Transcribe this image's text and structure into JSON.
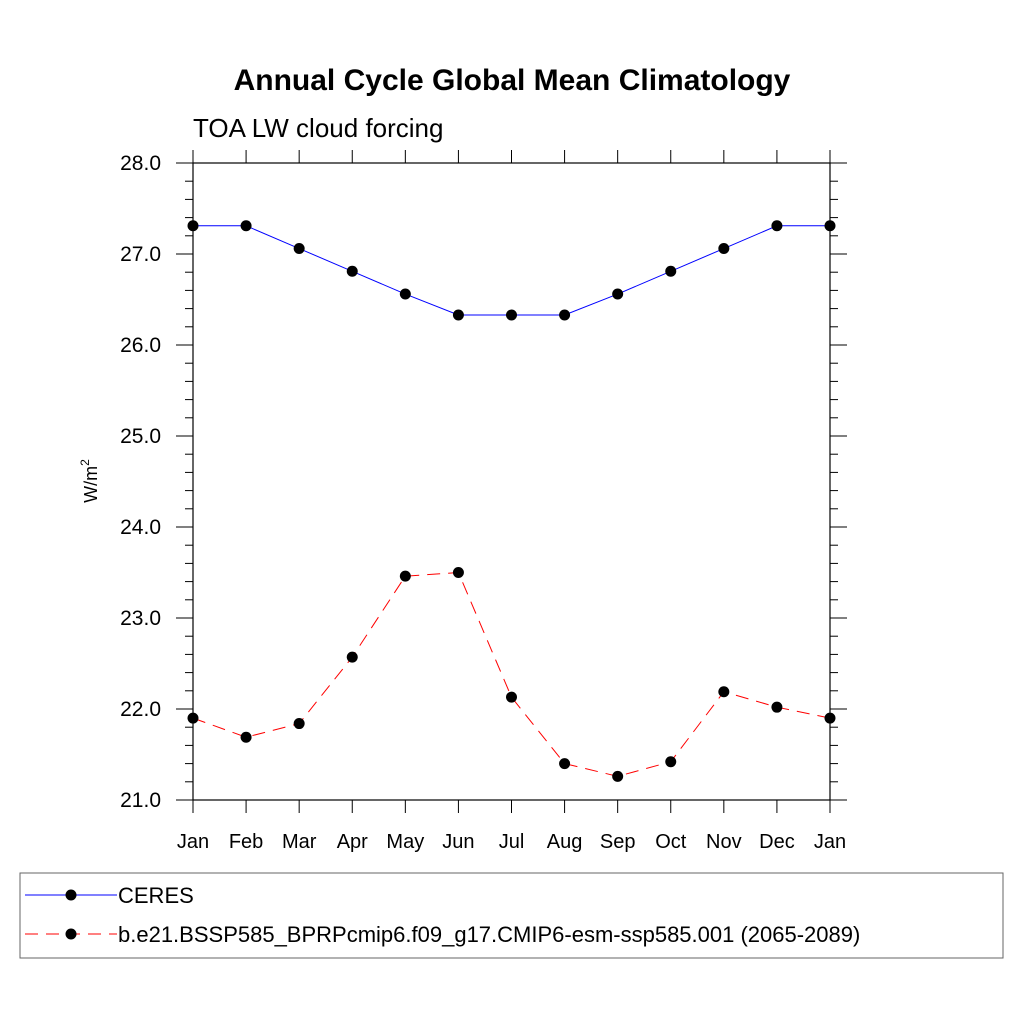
{
  "chart_data": {
    "type": "line",
    "title": "Annual Cycle Global Mean Climatology",
    "subtitle": "TOA LW cloud forcing",
    "xlabel": "",
    "ylabel": "W/m",
    "ylabel_superscript": "2",
    "ylim": [
      21.0,
      28.0
    ],
    "yticks": [
      "21.0",
      "22.0",
      "23.0",
      "24.0",
      "25.0",
      "26.0",
      "27.0",
      "28.0"
    ],
    "categories": [
      "Jan",
      "Feb",
      "Mar",
      "Apr",
      "May",
      "Jun",
      "Jul",
      "Aug",
      "Sep",
      "Oct",
      "Nov",
      "Dec",
      "Jan"
    ],
    "series": [
      {
        "name": "CERES",
        "color": "#0000ff",
        "dash": "solid",
        "values": [
          27.31,
          27.31,
          27.06,
          26.81,
          26.56,
          26.33,
          26.33,
          26.33,
          26.56,
          26.81,
          27.06,
          27.31,
          27.31
        ]
      },
      {
        "name": "b.e21.BSSP585_BPRPcmip6.f09_g17.CMIP6-esm-ssp585.001 (2065-2089)",
        "color": "#ff0000",
        "dash": "dashed",
        "values": [
          21.9,
          21.69,
          21.84,
          22.57,
          23.46,
          23.5,
          22.13,
          21.4,
          21.26,
          21.42,
          22.19,
          22.02,
          21.9
        ]
      }
    ],
    "legend_position": "bottom"
  }
}
